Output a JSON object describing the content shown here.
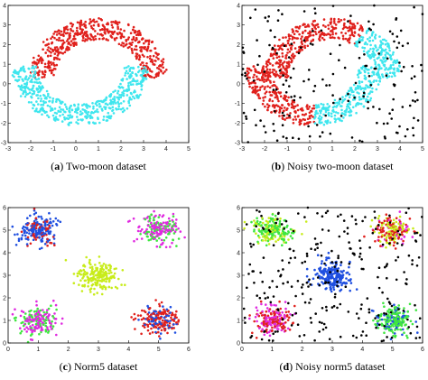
{
  "chart_data": [
    {
      "type": "scatter",
      "caption": {
        "letter": "a",
        "text": " Two-moon dataset"
      },
      "xlim": [
        -3,
        5
      ],
      "ylim": [
        -3,
        4
      ],
      "xticks": [
        "-3",
        "-2",
        "-1",
        "0",
        "1",
        "2",
        "3",
        "4",
        "5"
      ],
      "yticks": [
        "-3",
        "-2",
        "-1",
        "0",
        "1",
        "2",
        "3",
        "4"
      ],
      "grid": false,
      "colors": {
        "moon_upper": "#e0201c",
        "moon_lower": "#3fe6ee"
      },
      "generator": {
        "moons": [
          {
            "series": "moon_upper",
            "center": [
              1,
              0.3
            ],
            "radius": 2.5,
            "angle_start_deg": 0,
            "angle_end_deg": 180,
            "band": 0.55,
            "count": 500
          },
          {
            "series": "moon_lower",
            "center": [
              0.2,
              0.9
            ],
            "radius": 2.5,
            "angle_start_deg": 180,
            "angle_end_deg": 360,
            "band": 0.55,
            "count": 500
          }
        ],
        "noise_count": 0
      }
    },
    {
      "type": "scatter",
      "caption": {
        "letter": "b",
        "text": " Noisy two-moon dataset"
      },
      "xlim": [
        -3,
        5
      ],
      "ylim": [
        -3,
        4
      ],
      "xticks": [
        "-3",
        "-2",
        "-1",
        "0",
        "1",
        "2",
        "3",
        "4",
        "5"
      ],
      "yticks": [
        "-3",
        "-2",
        "-1",
        "0",
        "1",
        "2",
        "3",
        "4"
      ],
      "grid": false,
      "colors": {
        "moon_left": "#e0201c",
        "moon_right": "#3fe6ee",
        "noise": "#000000"
      },
      "generator": {
        "moons": [
          {
            "series": "moon_left",
            "center": [
              1,
              0.3
            ],
            "radius": 2.5,
            "angle_start_deg": 60,
            "angle_end_deg": 180,
            "band": 0.55,
            "count": 330
          },
          {
            "series": "moon_right",
            "center": [
              1,
              0.3
            ],
            "radius": 2.5,
            "angle_start_deg": 0,
            "angle_end_deg": 60,
            "band": 0.55,
            "count": 170
          },
          {
            "series": "moon_left",
            "center": [
              0.2,
              0.9
            ],
            "radius": 2.5,
            "angle_start_deg": 180,
            "angle_end_deg": 270,
            "band": 0.55,
            "count": 250
          },
          {
            "series": "moon_right",
            "center": [
              0.2,
              0.9
            ],
            "radius": 2.5,
            "angle_start_deg": 270,
            "angle_end_deg": 360,
            "band": 0.55,
            "count": 250
          }
        ],
        "noise_count": 180
      }
    },
    {
      "type": "scatter",
      "caption": {
        "letter": "c",
        "text": " Norm5 dataset"
      },
      "xlim": [
        0,
        6
      ],
      "ylim": [
        0,
        6
      ],
      "xticks": [
        "0",
        "1",
        "2",
        "3",
        "4",
        "5",
        "6"
      ],
      "yticks": [
        "0",
        "1",
        "2",
        "3",
        "4",
        "5",
        "6"
      ],
      "grid": false,
      "colors": {
        "blue": "#1f4fe0",
        "red": "#e0201c",
        "magenta": "#e02ae0",
        "green": "#3fe640",
        "yellow": "#c8ec1a"
      },
      "generator": {
        "clusters": [
          {
            "center": [
              1,
              5
            ],
            "sd": 0.32,
            "count": 200,
            "mix": [
              [
                "blue",
                0.78
              ],
              [
                "red",
                0.22
              ]
            ]
          },
          {
            "center": [
              5,
              5
            ],
            "sd": 0.32,
            "count": 200,
            "mix": [
              [
                "magenta",
                0.55
              ],
              [
                "green",
                0.45
              ]
            ]
          },
          {
            "center": [
              3,
              3
            ],
            "sd": 0.32,
            "count": 200,
            "mix": [
              [
                "yellow",
                1.0
              ]
            ]
          },
          {
            "center": [
              1,
              1
            ],
            "sd": 0.32,
            "count": 200,
            "mix": [
              [
                "magenta",
                0.55
              ],
              [
                "green",
                0.45
              ]
            ]
          },
          {
            "center": [
              5,
              1
            ],
            "sd": 0.32,
            "count": 200,
            "mix": [
              [
                "red",
                0.7
              ],
              [
                "blue",
                0.3
              ]
            ]
          }
        ],
        "noise_count": 0
      }
    },
    {
      "type": "scatter",
      "caption": {
        "letter": "d",
        "text": " Noisy norm5 dataset"
      },
      "xlim": [
        0,
        6
      ],
      "ylim": [
        0,
        6
      ],
      "xticks": [
        "0",
        "1",
        "2",
        "3",
        "4",
        "5",
        "6"
      ],
      "yticks": [
        "0",
        "1",
        "2",
        "3",
        "4",
        "5",
        "6"
      ],
      "grid": false,
      "colors": {
        "blue": "#1f4fe0",
        "red": "#e0201c",
        "magenta": "#e02ae0",
        "green": "#3fe640",
        "yellow": "#c8ec1a",
        "noise": "#000000"
      },
      "generator": {
        "clusters": [
          {
            "center": [
              1,
              5
            ],
            "sd": 0.3,
            "count": 200,
            "mix": [
              [
                "green",
                0.6
              ],
              [
                "yellow",
                0.4
              ]
            ]
          },
          {
            "center": [
              5,
              5
            ],
            "sd": 0.3,
            "count": 200,
            "mix": [
              [
                "red",
                0.45
              ],
              [
                "magenta",
                0.15
              ],
              [
                "yellow",
                0.4
              ]
            ]
          },
          {
            "center": [
              3,
              3
            ],
            "sd": 0.3,
            "count": 200,
            "mix": [
              [
                "blue",
                1.0
              ]
            ]
          },
          {
            "center": [
              1,
              1
            ],
            "sd": 0.3,
            "count": 200,
            "mix": [
              [
                "magenta",
                0.55
              ],
              [
                "red",
                0.45
              ]
            ]
          },
          {
            "center": [
              5,
              1
            ],
            "sd": 0.3,
            "count": 200,
            "mix": [
              [
                "green",
                0.75
              ],
              [
                "blue",
                0.25
              ]
            ]
          }
        ],
        "noise_count": 260
      }
    }
  ]
}
